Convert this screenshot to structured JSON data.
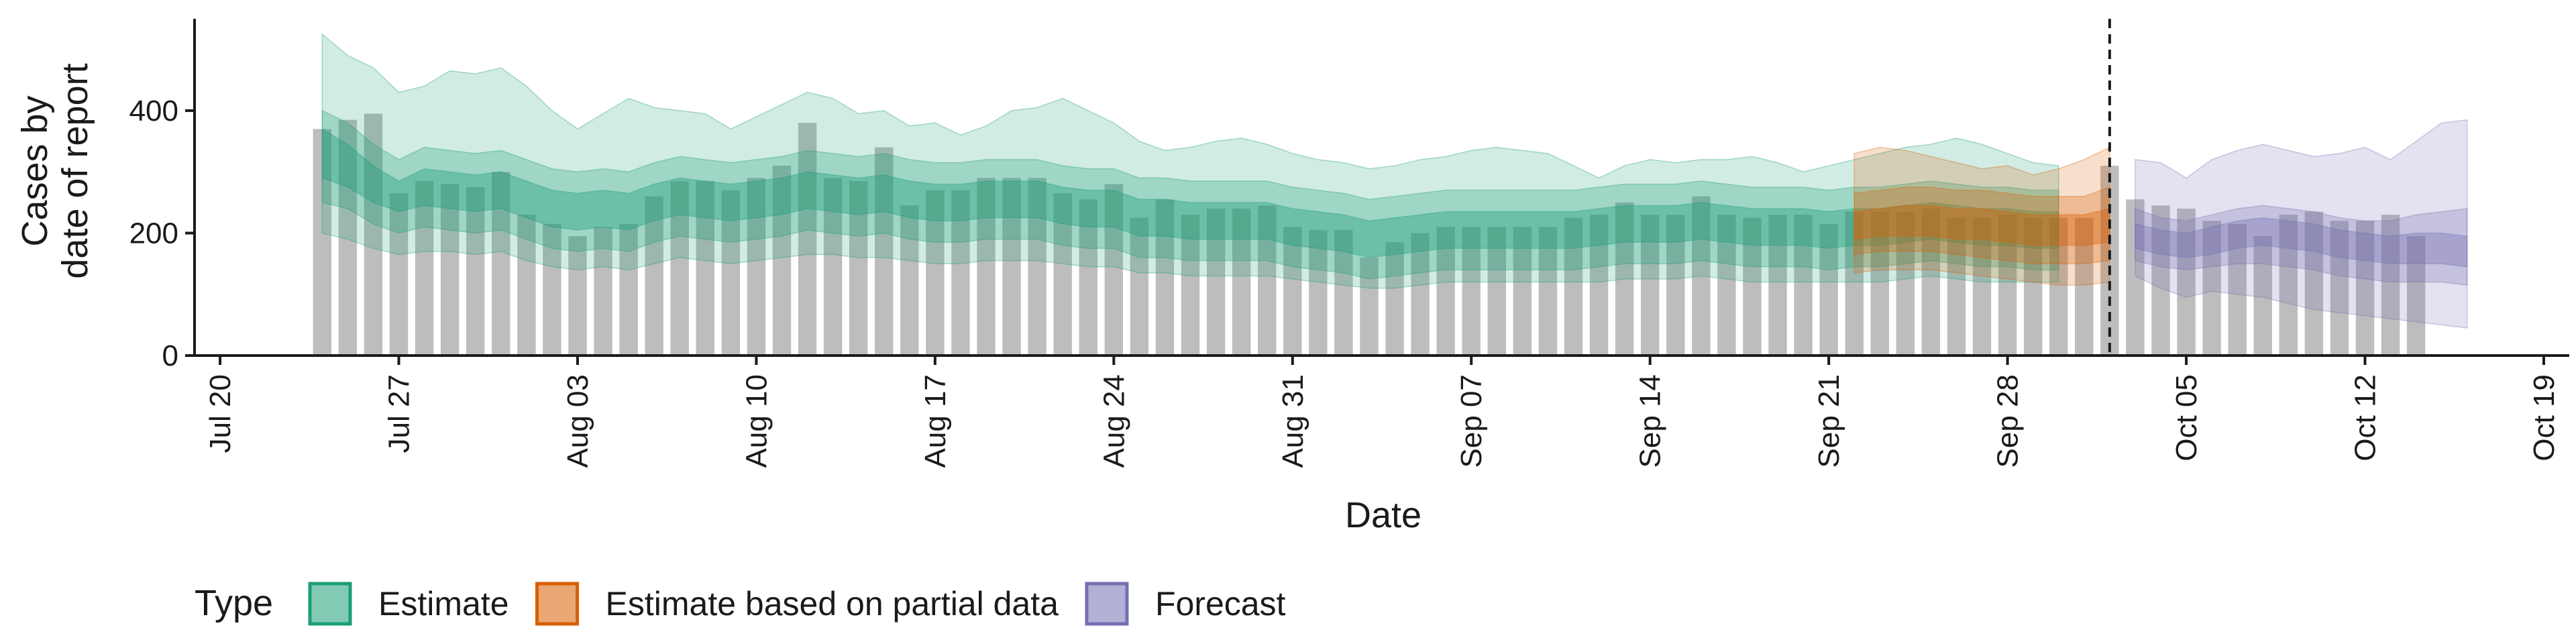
{
  "chart_data": {
    "type": "bar",
    "title": "",
    "xlabel": "Date",
    "ylabel": [
      "Cases by",
      "date of report"
    ],
    "ylim": [
      0,
      550
    ],
    "y_ticks": [
      0,
      200,
      400
    ],
    "x_tick_labels": [
      "Jul 20",
      "Jul 27",
      "Aug 03",
      "Aug 10",
      "Aug 17",
      "Aug 24",
      "Aug 31",
      "Sep 07",
      "Sep 14",
      "Sep 21",
      "Sep 28",
      "Oct 05",
      "Oct 12",
      "Oct 19"
    ],
    "x_tick_dates": [
      "2020-07-20",
      "2020-07-27",
      "2020-08-03",
      "2020-08-10",
      "2020-08-17",
      "2020-08-24",
      "2020-08-31",
      "2020-09-07",
      "2020-09-14",
      "2020-09-21",
      "2020-09-28",
      "2020-10-05",
      "2020-10-12",
      "2020-10-19"
    ],
    "x_range": [
      "2020-07-19",
      "2020-10-20"
    ],
    "grid": false,
    "forecast_start_line": "2020-10-02",
    "reported_cases": {
      "start_date": "2020-07-24",
      "values": [
        370,
        385,
        395,
        265,
        285,
        280,
        275,
        300,
        230,
        215,
        195,
        210,
        215,
        260,
        285,
        285,
        270,
        290,
        310,
        380,
        290,
        285,
        340,
        245,
        270,
        270,
        290,
        290,
        290,
        265,
        255,
        280,
        225,
        255,
        230,
        240,
        240,
        245,
        210,
        205,
        205,
        160,
        185,
        200,
        210,
        210,
        210,
        210,
        210,
        225,
        230,
        250,
        230,
        230,
        260,
        230,
        225,
        230,
        230,
        215,
        235,
        235,
        235,
        240,
        225,
        225,
        230,
        225,
        225,
        225,
        310,
        255,
        245,
        240,
        220,
        215,
        195,
        230,
        235,
        220,
        220,
        230,
        195
      ]
    },
    "series": [
      {
        "name": "Estimate",
        "color": "#1b9e77",
        "start_date": "2020-07-24",
        "median": [
          330,
          310,
          280,
          260,
          275,
          270,
          265,
          270,
          255,
          240,
          235,
          240,
          235,
          250,
          260,
          255,
          250,
          255,
          260,
          270,
          265,
          260,
          265,
          255,
          250,
          250,
          255,
          255,
          255,
          245,
          240,
          240,
          225,
          225,
          220,
          220,
          220,
          220,
          210,
          205,
          200,
          190,
          195,
          200,
          205,
          205,
          205,
          205,
          205,
          205,
          210,
          215,
          215,
          215,
          220,
          215,
          210,
          210,
          210,
          205,
          210,
          210,
          215,
          220,
          215,
          210,
          210,
          205,
          205
        ],
        "lower_20": [
          290,
          275,
          250,
          235,
          245,
          240,
          235,
          240,
          225,
          210,
          205,
          210,
          205,
          220,
          230,
          225,
          220,
          225,
          230,
          240,
          235,
          230,
          235,
          225,
          220,
          220,
          225,
          225,
          225,
          215,
          210,
          210,
          195,
          195,
          190,
          190,
          190,
          190,
          180,
          175,
          170,
          160,
          165,
          170,
          175,
          175,
          175,
          175,
          175,
          175,
          180,
          185,
          185,
          185,
          190,
          185,
          180,
          180,
          180,
          175,
          180,
          180,
          185,
          190,
          185,
          180,
          180,
          175,
          175
        ],
        "upper_20": [
          370,
          345,
          310,
          285,
          305,
          300,
          295,
          300,
          285,
          270,
          265,
          270,
          265,
          280,
          290,
          285,
          280,
          285,
          290,
          300,
          295,
          290,
          295,
          285,
          280,
          280,
          285,
          285,
          285,
          275,
          270,
          270,
          255,
          255,
          250,
          250,
          250,
          250,
          240,
          235,
          230,
          220,
          225,
          230,
          235,
          235,
          235,
          235,
          235,
          235,
          240,
          245,
          245,
          245,
          250,
          245,
          240,
          240,
          240,
          235,
          240,
          240,
          245,
          250,
          245,
          240,
          240,
          235,
          235
        ],
        "lower_50": [
          250,
          240,
          215,
          200,
          210,
          205,
          200,
          205,
          190,
          175,
          170,
          175,
          170,
          185,
          195,
          190,
          185,
          190,
          195,
          205,
          200,
          195,
          200,
          190,
          185,
          185,
          190,
          190,
          190,
          180,
          175,
          175,
          160,
          160,
          155,
          155,
          155,
          155,
          145,
          140,
          135,
          125,
          130,
          135,
          140,
          140,
          140,
          140,
          140,
          140,
          145,
          150,
          150,
          150,
          155,
          150,
          145,
          145,
          145,
          140,
          145,
          145,
          150,
          155,
          150,
          145,
          145,
          140,
          140
        ],
        "upper_50": [
          400,
          380,
          345,
          320,
          340,
          335,
          330,
          335,
          320,
          305,
          300,
          305,
          300,
          315,
          325,
          320,
          315,
          320,
          325,
          335,
          330,
          325,
          330,
          320,
          315,
          315,
          320,
          320,
          320,
          310,
          305,
          305,
          290,
          290,
          285,
          285,
          285,
          285,
          275,
          270,
          265,
          255,
          260,
          265,
          270,
          270,
          270,
          270,
          270,
          270,
          275,
          280,
          280,
          280,
          285,
          280,
          275,
          275,
          275,
          270,
          275,
          275,
          280,
          285,
          280,
          275,
          275,
          270,
          270
        ],
        "lower_90": [
          200,
          190,
          175,
          165,
          170,
          170,
          165,
          170,
          155,
          145,
          140,
          145,
          140,
          150,
          160,
          155,
          150,
          155,
          160,
          165,
          165,
          160,
          160,
          155,
          150,
          150,
          155,
          155,
          155,
          150,
          145,
          145,
          135,
          135,
          130,
          130,
          130,
          130,
          125,
          120,
          115,
          110,
          110,
          115,
          120,
          120,
          120,
          120,
          120,
          120,
          120,
          125,
          125,
          125,
          130,
          125,
          120,
          120,
          120,
          120,
          120,
          120,
          125,
          130,
          125,
          120,
          120,
          120,
          120
        ],
        "upper_90": [
          525,
          490,
          470,
          430,
          440,
          465,
          460,
          470,
          440,
          400,
          370,
          395,
          420,
          405,
          400,
          395,
          370,
          390,
          410,
          430,
          420,
          395,
          400,
          375,
          380,
          360,
          375,
          400,
          405,
          420,
          400,
          380,
          350,
          335,
          340,
          350,
          355,
          345,
          330,
          320,
          315,
          305,
          310,
          320,
          325,
          335,
          340,
          335,
          330,
          310,
          290,
          310,
          320,
          315,
          320,
          320,
          325,
          315,
          300,
          310,
          320,
          330,
          340,
          345,
          355,
          345,
          330,
          315,
          310
        ]
      },
      {
        "name": "Estimate based on partial data",
        "color": "#d95f02",
        "start_date": "2020-09-22",
        "median": [
          210,
          215,
          220,
          220,
          215,
          215,
          210,
          205,
          205,
          205,
          210
        ],
        "lower_20": [
          190,
          195,
          195,
          195,
          190,
          190,
          185,
          180,
          180,
          180,
          185
        ],
        "upper_20": [
          235,
          240,
          245,
          245,
          240,
          240,
          235,
          230,
          230,
          230,
          240
        ],
        "lower_50": [
          165,
          170,
          170,
          170,
          165,
          160,
          155,
          150,
          150,
          150,
          155
        ],
        "upper_50": [
          265,
          270,
          275,
          275,
          270,
          270,
          265,
          260,
          260,
          260,
          275
        ],
        "lower_90": [
          135,
          140,
          140,
          140,
          135,
          130,
          125,
          120,
          115,
          115,
          120
        ],
        "upper_90": [
          330,
          340,
          335,
          325,
          315,
          305,
          310,
          295,
          305,
          320,
          340
        ]
      },
      {
        "name": "Forecast",
        "color": "#7570b3",
        "start_date": "2020-10-03",
        "median": [
          195,
          185,
          180,
          185,
          195,
          200,
          195,
          190,
          180,
          175,
          170,
          175,
          175,
          170
        ],
        "lower_20": [
          175,
          165,
          160,
          165,
          175,
          180,
          175,
          170,
          160,
          155,
          150,
          150,
          150,
          145
        ],
        "upper_20": [
          215,
          205,
          200,
          210,
          220,
          225,
          220,
          215,
          205,
          200,
          195,
          200,
          200,
          195
        ],
        "lower_50": [
          155,
          145,
          140,
          145,
          150,
          150,
          145,
          140,
          130,
          125,
          120,
          120,
          120,
          115
        ],
        "upper_50": [
          240,
          225,
          220,
          230,
          240,
          245,
          240,
          235,
          225,
          220,
          220,
          230,
          235,
          240
        ],
        "lower_90": [
          130,
          110,
          95,
          105,
          100,
          95,
          85,
          75,
          70,
          65,
          60,
          55,
          50,
          45
        ],
        "upper_90": [
          320,
          315,
          290,
          320,
          335,
          345,
          335,
          325,
          330,
          340,
          320,
          350,
          380,
          385
        ]
      }
    ],
    "legend": {
      "title": "Type",
      "placement": "bottom",
      "entries": [
        "Estimate",
        "Estimate based on partial data",
        "Forecast"
      ]
    }
  }
}
